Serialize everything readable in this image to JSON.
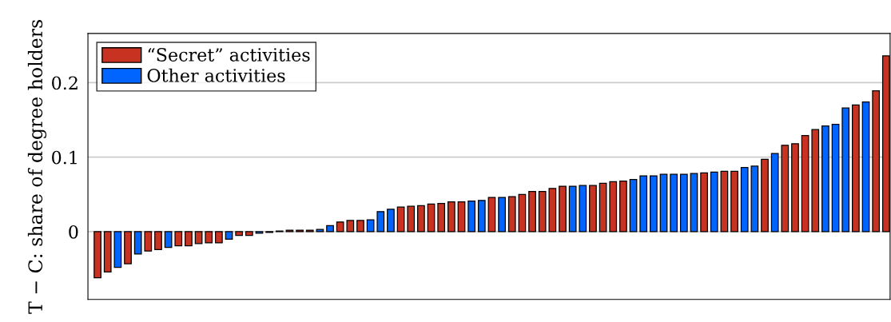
{
  "chart_data": {
    "type": "bar",
    "ylabel": "T − C: share of degree holders",
    "categories": [
      null,
      null,
      null,
      null,
      null,
      null,
      null,
      null,
      null,
      null,
      null,
      null,
      null,
      null,
      null,
      null,
      null,
      null,
      null,
      null,
      null,
      null,
      null,
      null,
      null,
      null,
      null,
      null,
      null,
      null,
      null,
      null,
      null,
      null,
      null,
      null,
      null,
      null,
      null,
      null,
      null,
      null,
      null,
      null,
      null,
      null,
      null,
      null,
      null,
      null,
      null,
      null,
      null,
      null,
      null,
      null,
      null,
      null,
      null,
      null,
      null,
      null,
      null,
      null,
      null,
      null,
      null,
      null,
      null,
      null,
      null,
      null,
      null,
      null,
      null,
      null,
      null,
      null,
      null
    ],
    "series": [
      {
        "name": "“Secret” activities",
        "color": "#c83220",
        "values": [
          -0.062,
          -0.054,
          null,
          -0.043,
          null,
          -0.026,
          -0.024,
          null,
          -0.019,
          -0.019,
          -0.016,
          -0.015,
          -0.015,
          null,
          -0.005,
          -0.005,
          null,
          -0.001,
          0.001,
          0.002,
          0.002,
          0.002,
          null,
          null,
          0.013,
          0.015,
          0.015,
          null,
          null,
          null,
          0.033,
          0.034,
          0.035,
          0.037,
          0.038,
          0.04,
          0.04,
          null,
          null,
          0.046,
          null,
          0.047,
          0.05,
          0.054,
          0.054,
          0.058,
          0.061,
          null,
          null,
          0.062,
          0.065,
          0.067,
          0.068,
          null,
          null,
          null,
          null,
          null,
          null,
          null,
          0.079,
          null,
          0.081,
          0.081,
          null,
          null,
          0.097,
          null,
          0.116,
          0.118,
          0.129,
          0.137,
          null,
          null,
          null,
          0.17,
          null,
          0.189,
          0.236
        ]
      },
      {
        "name": "Other activities",
        "color": "#0064ff",
        "values": [
          null,
          null,
          -0.048,
          null,
          -0.03,
          null,
          null,
          -0.021,
          null,
          null,
          null,
          null,
          null,
          -0.01,
          null,
          null,
          -0.002,
          null,
          null,
          null,
          null,
          null,
          0.003,
          0.008,
          null,
          null,
          null,
          0.016,
          0.027,
          0.03,
          null,
          null,
          null,
          null,
          null,
          null,
          null,
          0.041,
          0.042,
          null,
          0.046,
          null,
          null,
          null,
          null,
          null,
          null,
          0.061,
          0.062,
          null,
          null,
          null,
          null,
          0.07,
          0.075,
          0.075,
          0.077,
          0.077,
          0.077,
          0.078,
          null,
          0.08,
          null,
          null,
          0.086,
          0.088,
          null,
          0.105,
          null,
          null,
          null,
          null,
          0.142,
          0.144,
          0.166,
          null,
          0.174,
          null,
          null
        ]
      }
    ],
    "ylim": [
      -0.091,
      0.266
    ],
    "yticks": [
      0,
      {
        "value": 0.1,
        "label": "0.1"
      },
      {
        "value": 0.2,
        "label": "0.2"
      }
    ],
    "grid": "y",
    "legend": "top left"
  }
}
